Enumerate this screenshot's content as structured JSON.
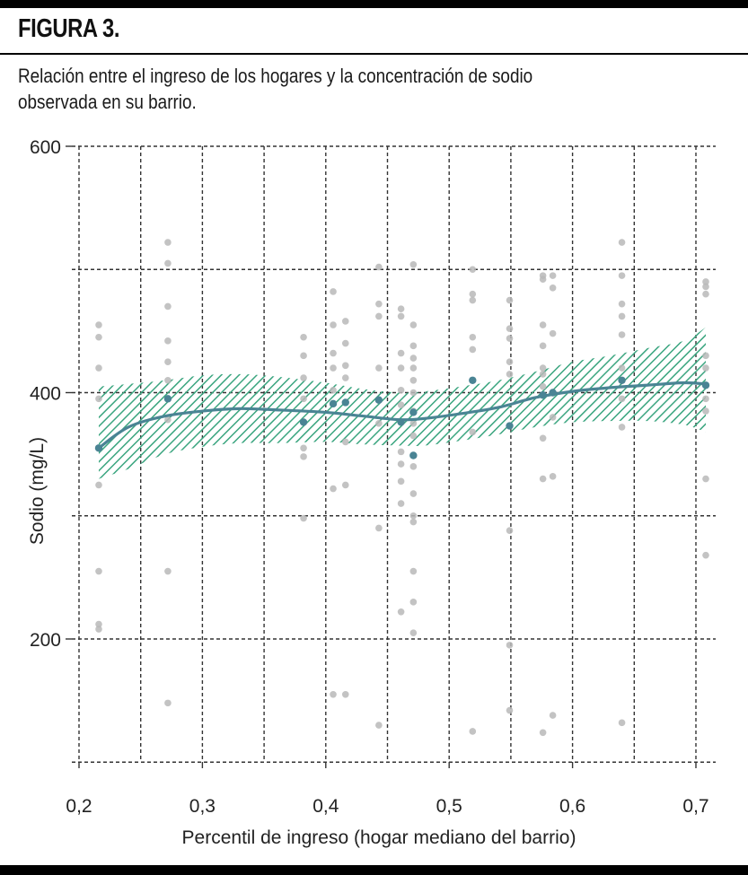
{
  "figure_label": "FIGURA 3.",
  "subtitle": "Relación entre el ingreso de los hogares y la concentración de sodio observada en su barrio.",
  "colors": {
    "fit": "#4a8494",
    "band": "#3aa57f",
    "scatter": "#b8b8b8",
    "grid": "#333333"
  },
  "chart_data": {
    "type": "scatter",
    "xlabel": "Percentil de ingreso (hogar mediano del barrio)",
    "ylabel": "Sodio (mg/L)",
    "xlim": [
      0.2,
      0.72
    ],
    "ylim": [
      100,
      600
    ],
    "x_ticks": [
      0.2,
      0.3,
      0.4,
      0.5,
      0.6,
      0.7
    ],
    "x_tick_labels": [
      "0,2",
      "0,3",
      "0,4",
      "0,5",
      "0,6",
      "0,7"
    ],
    "x_minor_grid": [
      0.25,
      0.35,
      0.45,
      0.55,
      0.65
    ],
    "y_ticks": [
      200,
      400,
      600
    ],
    "y_tick_labels": [
      "200",
      "400",
      "600"
    ],
    "y_minor_grid": [
      100,
      300,
      500
    ],
    "grid": true,
    "series": [
      {
        "kind": "observations",
        "points": [
          [
            0.216,
            455
          ],
          [
            0.216,
            445
          ],
          [
            0.216,
            420
          ],
          [
            0.216,
            395
          ],
          [
            0.216,
            355
          ],
          [
            0.216,
            325
          ],
          [
            0.216,
            255
          ],
          [
            0.216,
            212
          ],
          [
            0.216,
            208
          ],
          [
            0.272,
            522
          ],
          [
            0.272,
            505
          ],
          [
            0.272,
            470
          ],
          [
            0.272,
            442
          ],
          [
            0.272,
            425
          ],
          [
            0.272,
            410
          ],
          [
            0.272,
            378
          ],
          [
            0.272,
            255
          ],
          [
            0.272,
            148
          ],
          [
            0.382,
            445
          ],
          [
            0.382,
            430
          ],
          [
            0.382,
            412
          ],
          [
            0.382,
            395
          ],
          [
            0.382,
            355
          ],
          [
            0.382,
            348
          ],
          [
            0.382,
            298
          ],
          [
            0.406,
            482
          ],
          [
            0.406,
            455
          ],
          [
            0.406,
            432
          ],
          [
            0.406,
            420
          ],
          [
            0.406,
            402
          ],
          [
            0.406,
            322
          ],
          [
            0.406,
            155
          ],
          [
            0.416,
            458
          ],
          [
            0.416,
            440
          ],
          [
            0.416,
            422
          ],
          [
            0.416,
            412
          ],
          [
            0.416,
            360
          ],
          [
            0.416,
            325
          ],
          [
            0.416,
            155
          ],
          [
            0.443,
            502
          ],
          [
            0.443,
            472
          ],
          [
            0.443,
            462
          ],
          [
            0.443,
            420
          ],
          [
            0.443,
            375
          ],
          [
            0.443,
            290
          ],
          [
            0.443,
            130
          ],
          [
            0.461,
            468
          ],
          [
            0.461,
            462
          ],
          [
            0.461,
            432
          ],
          [
            0.461,
            420
          ],
          [
            0.461,
            402
          ],
          [
            0.461,
            390
          ],
          [
            0.461,
            352
          ],
          [
            0.461,
            342
          ],
          [
            0.461,
            328
          ],
          [
            0.461,
            310
          ],
          [
            0.461,
            222
          ],
          [
            0.471,
            504
          ],
          [
            0.471,
            455
          ],
          [
            0.471,
            438
          ],
          [
            0.471,
            428
          ],
          [
            0.471,
            420
          ],
          [
            0.471,
            410
          ],
          [
            0.471,
            400
          ],
          [
            0.471,
            385
          ],
          [
            0.471,
            375
          ],
          [
            0.471,
            365
          ],
          [
            0.471,
            340
          ],
          [
            0.471,
            318
          ],
          [
            0.471,
            300
          ],
          [
            0.471,
            295
          ],
          [
            0.471,
            255
          ],
          [
            0.471,
            230
          ],
          [
            0.471,
            205
          ],
          [
            0.519,
            500
          ],
          [
            0.519,
            480
          ],
          [
            0.519,
            475
          ],
          [
            0.519,
            445
          ],
          [
            0.519,
            435
          ],
          [
            0.519,
            368
          ],
          [
            0.519,
            125
          ],
          [
            0.549,
            475
          ],
          [
            0.549,
            452
          ],
          [
            0.549,
            444
          ],
          [
            0.549,
            425
          ],
          [
            0.549,
            415
          ],
          [
            0.549,
            288
          ],
          [
            0.549,
            195
          ],
          [
            0.549,
            142
          ],
          [
            0.576,
            495
          ],
          [
            0.576,
            492
          ],
          [
            0.576,
            455
          ],
          [
            0.576,
            438
          ],
          [
            0.576,
            420
          ],
          [
            0.576,
            415
          ],
          [
            0.576,
            405
          ],
          [
            0.576,
            363
          ],
          [
            0.576,
            330
          ],
          [
            0.576,
            124
          ],
          [
            0.584,
            495
          ],
          [
            0.584,
            485
          ],
          [
            0.584,
            448
          ],
          [
            0.584,
            380
          ],
          [
            0.584,
            332
          ],
          [
            0.584,
            138
          ],
          [
            0.64,
            522
          ],
          [
            0.64,
            495
          ],
          [
            0.64,
            472
          ],
          [
            0.64,
            462
          ],
          [
            0.64,
            447
          ],
          [
            0.64,
            420
          ],
          [
            0.64,
            395
          ],
          [
            0.64,
            372
          ],
          [
            0.64,
            132
          ],
          [
            0.708,
            490
          ],
          [
            0.708,
            486
          ],
          [
            0.708,
            480
          ],
          [
            0.708,
            430
          ],
          [
            0.708,
            420
          ],
          [
            0.708,
            395
          ],
          [
            0.708,
            385
          ],
          [
            0.708,
            330
          ],
          [
            0.708,
            268
          ]
        ]
      },
      {
        "kind": "group_means",
        "points": [
          [
            0.216,
            355
          ],
          [
            0.272,
            395
          ],
          [
            0.382,
            376
          ],
          [
            0.406,
            391
          ],
          [
            0.416,
            392
          ],
          [
            0.443,
            394
          ],
          [
            0.461,
            376
          ],
          [
            0.471,
            384
          ],
          [
            0.471,
            349
          ],
          [
            0.519,
            410
          ],
          [
            0.549,
            373
          ],
          [
            0.576,
            398
          ],
          [
            0.584,
            400
          ],
          [
            0.64,
            410
          ],
          [
            0.708,
            406
          ]
        ]
      },
      {
        "kind": "smooth_fit",
        "points": [
          [
            0.216,
            355
          ],
          [
            0.24,
            372
          ],
          [
            0.27,
            381
          ],
          [
            0.3,
            385
          ],
          [
            0.33,
            387
          ],
          [
            0.36,
            386
          ],
          [
            0.4,
            384
          ],
          [
            0.43,
            381
          ],
          [
            0.46,
            378
          ],
          [
            0.48,
            379
          ],
          [
            0.51,
            383
          ],
          [
            0.54,
            388
          ],
          [
            0.57,
            396
          ],
          [
            0.6,
            401
          ],
          [
            0.63,
            404
          ],
          [
            0.66,
            406
          ],
          [
            0.69,
            408
          ],
          [
            0.708,
            407
          ]
        ]
      },
      {
        "kind": "confidence_band",
        "upper": [
          [
            0.216,
            405
          ],
          [
            0.24,
            407
          ],
          [
            0.27,
            410
          ],
          [
            0.3,
            414
          ],
          [
            0.33,
            415
          ],
          [
            0.36,
            413
          ],
          [
            0.4,
            408
          ],
          [
            0.43,
            403
          ],
          [
            0.46,
            400
          ],
          [
            0.48,
            401
          ],
          [
            0.51,
            405
          ],
          [
            0.54,
            410
          ],
          [
            0.57,
            417
          ],
          [
            0.6,
            425
          ],
          [
            0.63,
            430
          ],
          [
            0.66,
            436
          ],
          [
            0.69,
            442
          ],
          [
            0.708,
            453
          ]
        ],
        "lower": [
          [
            0.216,
            330
          ],
          [
            0.24,
            338
          ],
          [
            0.27,
            350
          ],
          [
            0.3,
            356
          ],
          [
            0.33,
            359
          ],
          [
            0.36,
            359
          ],
          [
            0.4,
            360
          ],
          [
            0.43,
            358
          ],
          [
            0.46,
            357
          ],
          [
            0.48,
            357
          ],
          [
            0.51,
            361
          ],
          [
            0.54,
            366
          ],
          [
            0.57,
            372
          ],
          [
            0.6,
            376
          ],
          [
            0.63,
            377
          ],
          [
            0.66,
            377
          ],
          [
            0.69,
            374
          ],
          [
            0.708,
            368
          ]
        ]
      }
    ]
  }
}
